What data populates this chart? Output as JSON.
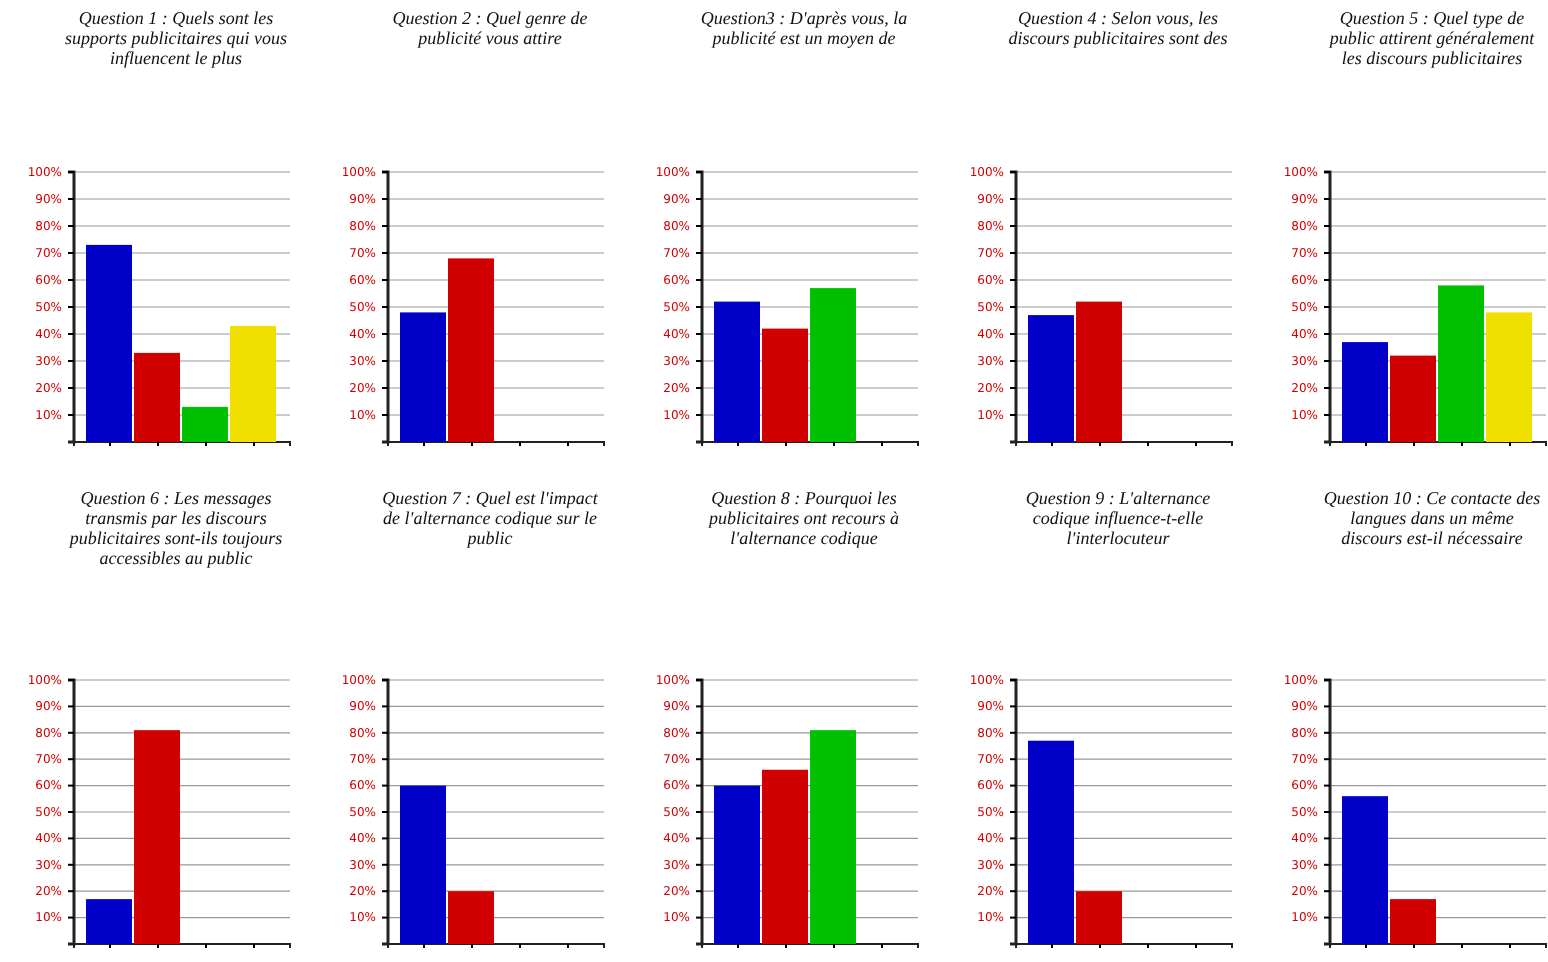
{
  "chart_data": [
    {
      "type": "bar",
      "title": "Question 1 : Quels sont les supports publicitaires qui vous influencent le plus",
      "categories": [
        null,
        null,
        null,
        null
      ],
      "values": [
        73,
        33,
        13,
        43
      ],
      "colors": [
        "#0000c8",
        "#d00000",
        "#00c000",
        "#f0e000"
      ],
      "ylim": [
        0,
        100
      ],
      "yticks": [
        {
          "value": 10,
          "label": "10%"
        },
        {
          "value": 20,
          "label": "20%"
        },
        {
          "value": 30,
          "label": "30%"
        },
        {
          "value": 40,
          "label": "40%"
        },
        {
          "value": 50,
          "label": "50%"
        },
        {
          "value": 60,
          "label": "60%"
        },
        {
          "value": 70,
          "label": "70%"
        },
        {
          "value": 80,
          "label": "80%"
        },
        {
          "value": 90,
          "label": "90%"
        },
        {
          "value": 100,
          "label": "100%"
        }
      ],
      "grid": "y"
    },
    {
      "type": "bar",
      "title": "Question 2 : Quel genre de publicité vous attire",
      "categories": [
        null,
        null,
        null,
        null
      ],
      "values": [
        48,
        68,
        null,
        null
      ],
      "colors": [
        "#0000c8",
        "#d00000",
        null,
        null
      ],
      "ylim": [
        0,
        100
      ],
      "yticks": [
        {
          "value": 10,
          "label": "10%"
        },
        {
          "value": 20,
          "label": "20%"
        },
        {
          "value": 30,
          "label": "30%"
        },
        {
          "value": 40,
          "label": "40%"
        },
        {
          "value": 50,
          "label": "50%"
        },
        {
          "value": 60,
          "label": "60%"
        },
        {
          "value": 70,
          "label": "70%"
        },
        {
          "value": 80,
          "label": "80%"
        },
        {
          "value": 90,
          "label": "90%"
        },
        {
          "value": 100,
          "label": "100%"
        }
      ],
      "grid": "y"
    },
    {
      "type": "bar",
      "title": "Question3 : D'après vous, la publicité est un moyen de",
      "categories": [
        null,
        null,
        null,
        null
      ],
      "values": [
        52,
        42,
        57,
        null
      ],
      "colors": [
        "#0000c8",
        "#d00000",
        "#00c000",
        null
      ],
      "ylim": [
        0,
        100
      ],
      "yticks": [
        {
          "value": 10,
          "label": "10%"
        },
        {
          "value": 20,
          "label": "20%"
        },
        {
          "value": 30,
          "label": "30%"
        },
        {
          "value": 40,
          "label": "40%"
        },
        {
          "value": 50,
          "label": "50%"
        },
        {
          "value": 60,
          "label": "60%"
        },
        {
          "value": 70,
          "label": "70%"
        },
        {
          "value": 80,
          "label": "80%"
        },
        {
          "value": 90,
          "label": "90%"
        },
        {
          "value": 100,
          "label": "100%"
        }
      ],
      "grid": "y"
    },
    {
      "type": "bar",
      "title": "Question 4 : Selon vous, les discours publicitaires sont des",
      "categories": [
        null,
        null,
        null,
        null
      ],
      "values": [
        47,
        52,
        null,
        null
      ],
      "colors": [
        "#0000c8",
        "#d00000",
        null,
        null
      ],
      "ylim": [
        0,
        100
      ],
      "yticks": [
        {
          "value": 10,
          "label": "10%"
        },
        {
          "value": 20,
          "label": "20%"
        },
        {
          "value": 30,
          "label": "30%"
        },
        {
          "value": 40,
          "label": "40%"
        },
        {
          "value": 50,
          "label": "50%"
        },
        {
          "value": 60,
          "label": "60%"
        },
        {
          "value": 70,
          "label": "70%"
        },
        {
          "value": 80,
          "label": "80%"
        },
        {
          "value": 90,
          "label": "90%"
        },
        {
          "value": 100,
          "label": "100%"
        }
      ],
      "grid": "y"
    },
    {
      "type": "bar",
      "title": "Question 5 : Quel type de public attirent généralement les discours publicitaires",
      "categories": [
        null,
        null,
        null,
        null
      ],
      "values": [
        37,
        32,
        58,
        48
      ],
      "colors": [
        "#0000c8",
        "#d00000",
        "#00c000",
        "#f0e000"
      ],
      "ylim": [
        0,
        100
      ],
      "yticks": [
        {
          "value": 10,
          "label": "10%"
        },
        {
          "value": 20,
          "label": "20%"
        },
        {
          "value": 30,
          "label": "30%"
        },
        {
          "value": 40,
          "label": "40%"
        },
        {
          "value": 50,
          "label": "50%"
        },
        {
          "value": 60,
          "label": "60%"
        },
        {
          "value": 70,
          "label": "70%"
        },
        {
          "value": 80,
          "label": "80%"
        },
        {
          "value": 90,
          "label": "90%"
        },
        {
          "value": 100,
          "label": "100%"
        }
      ],
      "grid": "y"
    },
    {
      "type": "bar",
      "title": "Question 6 : Les messages transmis par les discours publicitaires sont-ils toujours accessibles au public",
      "categories": [
        null,
        null,
        null,
        null
      ],
      "values": [
        17,
        81,
        null,
        null
      ],
      "colors": [
        "#0000c8",
        "#d00000",
        null,
        null
      ],
      "ylim": [
        0,
        100
      ],
      "yticks": [
        {
          "value": 10,
          "label": "10%"
        },
        {
          "value": 20,
          "label": "20%"
        },
        {
          "value": 30,
          "label": "30%"
        },
        {
          "value": 40,
          "label": "40%"
        },
        {
          "value": 50,
          "label": "50%"
        },
        {
          "value": 60,
          "label": "60%"
        },
        {
          "value": 70,
          "label": "70%"
        },
        {
          "value": 80,
          "label": "80%"
        },
        {
          "value": 90,
          "label": "90%"
        },
        {
          "value": 100,
          "label": "100%"
        }
      ],
      "grid": "y"
    },
    {
      "type": "bar",
      "title": "Question 7 : Quel est l'impact de l'alternance codique sur le public",
      "categories": [
        null,
        null,
        null,
        null
      ],
      "values": [
        60,
        20,
        null,
        null
      ],
      "colors": [
        "#0000c8",
        "#d00000",
        null,
        null
      ],
      "ylim": [
        0,
        100
      ],
      "yticks": [
        {
          "value": 10,
          "label": "10%"
        },
        {
          "value": 20,
          "label": "20%"
        },
        {
          "value": 30,
          "label": "30%"
        },
        {
          "value": 40,
          "label": "40%"
        },
        {
          "value": 50,
          "label": "50%"
        },
        {
          "value": 60,
          "label": "60%"
        },
        {
          "value": 70,
          "label": "70%"
        },
        {
          "value": 80,
          "label": "80%"
        },
        {
          "value": 90,
          "label": "90%"
        },
        {
          "value": 100,
          "label": "100%"
        }
      ],
      "grid": "y"
    },
    {
      "type": "bar",
      "title": "Question 8 : Pourquoi les publicitaires ont recours à l'alternance codique",
      "categories": [
        null,
        null,
        null,
        null
      ],
      "values": [
        60,
        66,
        81,
        null
      ],
      "colors": [
        "#0000c8",
        "#d00000",
        "#00c000",
        null
      ],
      "ylim": [
        0,
        100
      ],
      "yticks": [
        {
          "value": 10,
          "label": "10%"
        },
        {
          "value": 20,
          "label": "20%"
        },
        {
          "value": 30,
          "label": "30%"
        },
        {
          "value": 40,
          "label": "40%"
        },
        {
          "value": 50,
          "label": "50%"
        },
        {
          "value": 60,
          "label": "60%"
        },
        {
          "value": 70,
          "label": "70%"
        },
        {
          "value": 80,
          "label": "80%"
        },
        {
          "value": 90,
          "label": "90%"
        },
        {
          "value": 100,
          "label": "100%"
        }
      ],
      "grid": "y"
    },
    {
      "type": "bar",
      "title": "Question 9 : L'alternance codique influence-t-elle l'interlocuteur",
      "categories": [
        null,
        null,
        null,
        null
      ],
      "values": [
        77,
        20,
        null,
        null
      ],
      "colors": [
        "#0000c8",
        "#d00000",
        null,
        null
      ],
      "ylim": [
        0,
        100
      ],
      "yticks": [
        {
          "value": 10,
          "label": "10%"
        },
        {
          "value": 20,
          "label": "20%"
        },
        {
          "value": 30,
          "label": "30%"
        },
        {
          "value": 40,
          "label": "40%"
        },
        {
          "value": 50,
          "label": "50%"
        },
        {
          "value": 60,
          "label": "60%"
        },
        {
          "value": 70,
          "label": "70%"
        },
        {
          "value": 80,
          "label": "80%"
        },
        {
          "value": 90,
          "label": "90%"
        },
        {
          "value": 100,
          "label": "100%"
        }
      ],
      "grid": "y"
    },
    {
      "type": "bar",
      "title": "Question 10 : Ce contacte des langues dans un même discours est-il nécessaire",
      "categories": [
        null,
        null,
        null,
        null
      ],
      "values": [
        56,
        17,
        null,
        null
      ],
      "colors": [
        "#0000c8",
        "#d00000",
        null,
        null
      ],
      "ylim": [
        0,
        100
      ],
      "yticks": [
        {
          "value": 10,
          "label": "10%"
        },
        {
          "value": 20,
          "label": "20%"
        },
        {
          "value": 30,
          "label": "30%"
        },
        {
          "value": 40,
          "label": "40%"
        },
        {
          "value": 50,
          "label": "50%"
        },
        {
          "value": 60,
          "label": "60%"
        },
        {
          "value": 70,
          "label": "70%"
        },
        {
          "value": 80,
          "label": "80%"
        },
        {
          "value": 90,
          "label": "90%"
        },
        {
          "value": 100,
          "label": "100%"
        }
      ],
      "grid": "y"
    }
  ]
}
